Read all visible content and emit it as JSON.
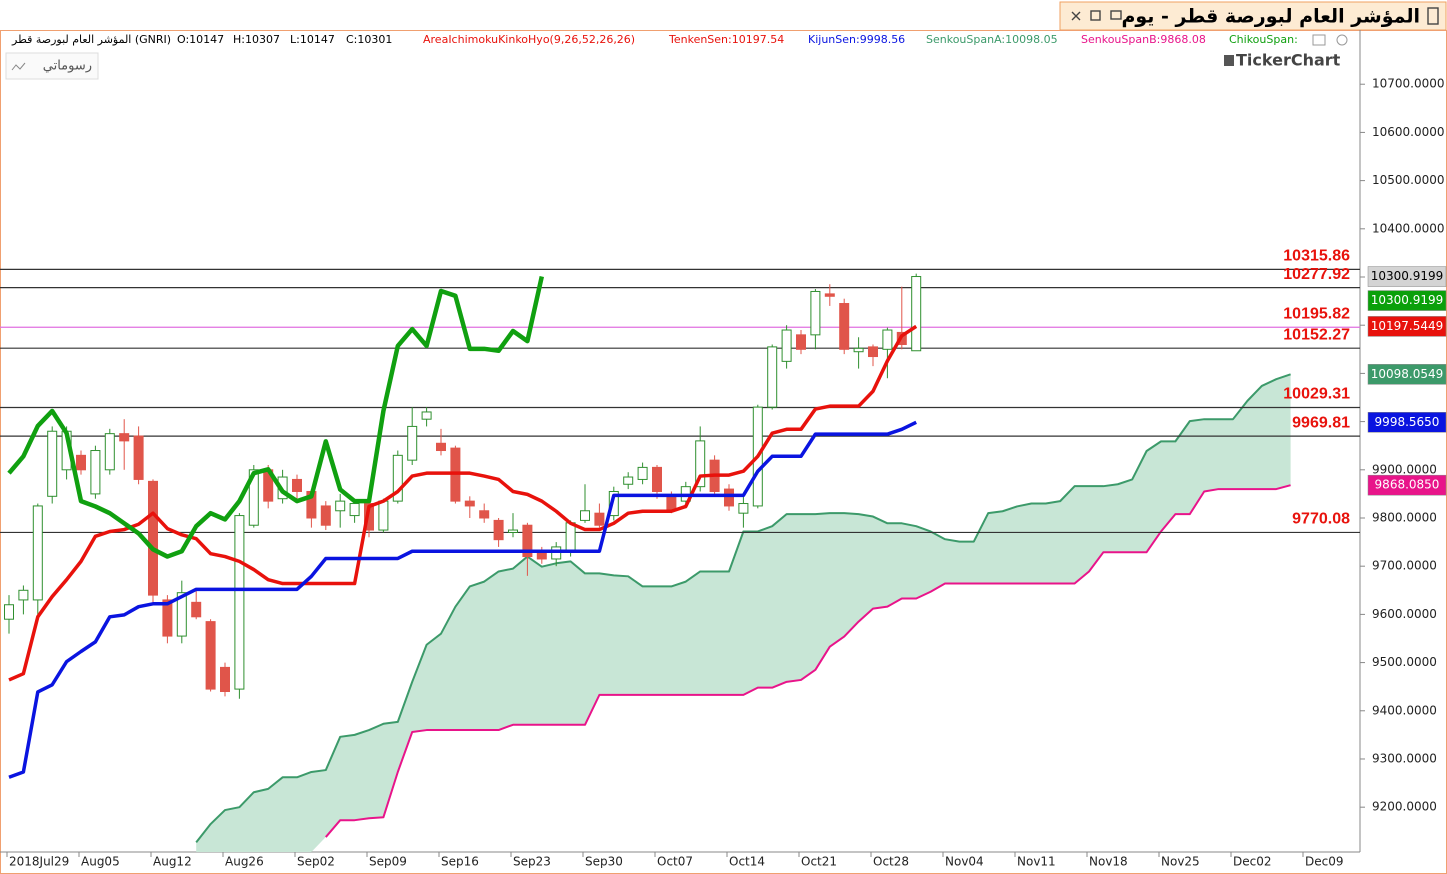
{
  "chart_data": {
    "type": "candlestick",
    "title": "المؤشر العام لبورصة قطر - يوم",
    "button": "رسوماتي",
    "logo": "TickerChart",
    "info": [
      {
        "text": "المؤشر العام لبورصة قطر (GNRI)",
        "color": "#000000"
      },
      {
        "text": "O:10147",
        "color": "#000000"
      },
      {
        "text": "H:10307",
        "color": "#000000"
      },
      {
        "text": "L:10147",
        "color": "#000000"
      },
      {
        "text": "C:10301",
        "color": "#000000"
      },
      {
        "text": "AreaIchimokuKinkoHyo(9,26,52,26,26)",
        "color": "#e8120c"
      },
      {
        "text": "TenkenSen:10197.54",
        "color": "#e8120c"
      },
      {
        "text": "KijunSen:9998.56",
        "color": "#0a14e0"
      },
      {
        "text": "SenkouSpanA:10098.05",
        "color": "#3c9a6a"
      },
      {
        "text": "SenkouSpanB:9868.08",
        "color": "#e8148a"
      },
      {
        "text": "ChikouSpan:",
        "color": "#10a010"
      }
    ],
    "categories": [
      "2018Jul29",
      null,
      null,
      null,
      null,
      "Aug05",
      null,
      null,
      null,
      null,
      "Aug12",
      null,
      null,
      null,
      null,
      "Aug26",
      null,
      null,
      null,
      null,
      "Sep02",
      null,
      null,
      null,
      null,
      "Sep09",
      null,
      null,
      null,
      null,
      "Sep16",
      null,
      null,
      null,
      null,
      "Sep23",
      null,
      null,
      null,
      null,
      "Sep30",
      null,
      null,
      null,
      null,
      "Oct07",
      null,
      null,
      null,
      null,
      "Oct14",
      null,
      null,
      null,
      null,
      "Oct21",
      null,
      null,
      null,
      null,
      "Oct28",
      null,
      null,
      null,
      null,
      "Nov04",
      null,
      null,
      null,
      null,
      "Nov11",
      null,
      null,
      null,
      null,
      "Nov18",
      null,
      null,
      null,
      null,
      "Nov25",
      null,
      null,
      null,
      null,
      "Dec02",
      null,
      null,
      null,
      null,
      "Dec09",
      null,
      null,
      null,
      null
    ],
    "open": [
      9590,
      9630,
      9630,
      9845,
      9900,
      9930,
      9850,
      9900,
      9975,
      9970,
      9876,
      9630,
      9555,
      9625,
      9585,
      9490,
      9445,
      9785,
      9900,
      9840,
      9880,
      9855,
      9825,
      9815,
      9805,
      9830,
      9775,
      9835,
      9920,
      10005,
      9955,
      9945,
      9835,
      9815,
      9795,
      9770,
      9785,
      9730,
      9715,
      9730,
      9795,
      9810,
      9805,
      9870,
      9880,
      9905,
      9845,
      9835,
      9865,
      9920,
      9860,
      9810,
      9825,
      10030,
      10125,
      10180,
      10180,
      10265,
      10245,
      10145,
      10155,
      10150,
      10185,
      10147,
      null,
      null,
      null,
      null,
      null,
      null,
      null,
      null,
      null,
      null,
      null,
      null,
      null,
      null,
      null,
      null,
      null,
      null,
      null,
      null,
      null,
      null,
      null,
      null,
      null,
      null,
      null,
      null,
      null,
      null,
      null
    ],
    "high": [
      9640,
      9660,
      9830,
      9990,
      9990,
      9940,
      9950,
      9985,
      10005,
      9990,
      9880,
      9640,
      9670,
      9650,
      9590,
      9500,
      9810,
      9910,
      9910,
      9900,
      9890,
      9860,
      9835,
      9850,
      9840,
      9835,
      9840,
      9940,
      10030,
      10030,
      9985,
      9950,
      9845,
      9830,
      9800,
      9810,
      9790,
      9740,
      9750,
      9795,
      9870,
      9830,
      9865,
      9895,
      9915,
      9910,
      9855,
      9875,
      9990,
      9930,
      9870,
      9845,
      10035,
      10160,
      10200,
      10190,
      10275,
      10285,
      10255,
      10175,
      10160,
      10195,
      10280,
      10307,
      null,
      null,
      null,
      null,
      null,
      null,
      null,
      null,
      null,
      null,
      null,
      null,
      null,
      null,
      null,
      null,
      null,
      null,
      null,
      null,
      null,
      null,
      null,
      null,
      null,
      null,
      null,
      null,
      null,
      null,
      null
    ],
    "low": [
      9560,
      9600,
      9600,
      9830,
      9880,
      9890,
      9840,
      9890,
      9900,
      9870,
      9620,
      9540,
      9540,
      9590,
      9440,
      9430,
      9425,
      9780,
      9820,
      9830,
      9840,
      9780,
      9775,
      9780,
      9790,
      9760,
      9770,
      9830,
      9910,
      9990,
      9930,
      9830,
      9800,
      9790,
      9740,
      9760,
      9680,
      9705,
      9700,
      9720,
      9790,
      9780,
      9795,
      9860,
      9870,
      9840,
      9810,
      9820,
      9855,
      9850,
      9815,
      9780,
      9820,
      10025,
      10110,
      10140,
      10150,
      10240,
      10140,
      10110,
      10115,
      10090,
      10150,
      10147,
      null,
      null,
      null,
      null,
      null,
      null,
      null,
      null,
      null,
      null,
      null,
      null,
      null,
      null,
      null,
      null,
      null,
      null,
      null,
      null,
      null,
      null,
      null,
      null,
      null,
      null,
      null,
      null,
      null,
      null,
      null
    ],
    "close": [
      9620,
      9650,
      9825,
      9980,
      9980,
      9900,
      9940,
      9975,
      9960,
      9880,
      9640,
      9555,
      9645,
      9595,
      9445,
      9440,
      9805,
      9900,
      9835,
      9885,
      9855,
      9800,
      9785,
      9835,
      9830,
      9775,
      9835,
      9930,
      9990,
      10020,
      9940,
      9835,
      9825,
      9800,
      9755,
      9775,
      9720,
      9715,
      9740,
      9790,
      9815,
      9785,
      9855,
      9885,
      9905,
      9855,
      9815,
      9865,
      9960,
      9855,
      9825,
      9830,
      10030,
      10155,
      10190,
      10150,
      10270,
      10260,
      10150,
      10152,
      10135,
      10190,
      10160,
      10301,
      null,
      null,
      null,
      null,
      null,
      null,
      null,
      null,
      null,
      null,
      null,
      null,
      null,
      null,
      null,
      null,
      null,
      null,
      null,
      null,
      null,
      null,
      null,
      null,
      null,
      null,
      null,
      null,
      null,
      null,
      null
    ],
    "up_color": "#2f8f2f",
    "down_color": "#e0554a",
    "series": [
      {
        "color": "#e8120c",
        "values": [
          9464,
          9477,
          9595,
          9637,
          9672,
          9710,
          9762,
          9772,
          9776,
          9787,
          9810,
          9778,
          9765,
          9757,
          9726,
          9720,
          9710,
          9693,
          9672,
          9664,
          9664,
          9664,
          9664,
          9664,
          9664,
          9824,
          9835,
          9855,
          9887,
          9893,
          9893,
          9893,
          9893,
          9887,
          9880,
          9855,
          9849,
          9835,
          9814,
          9789,
          9776,
          9776,
          9789,
          9810,
          9814,
          9814,
          9814,
          9824,
          9887,
          9889,
          9889,
          9897,
          9928,
          9976,
          9984,
          9984,
          10026,
          10032,
          10032,
          10032,
          10063,
          10126,
          10178,
          10197.54,
          null,
          null,
          null,
          null,
          null,
          null,
          null,
          null,
          null,
          null,
          null,
          null,
          null,
          null,
          null,
          null,
          null,
          null,
          null,
          null,
          null,
          null,
          null,
          null,
          null,
          null,
          null,
          null,
          null,
          null,
          null
        ]
      },
      {
        "color": "#0a14e0",
        "values": [
          9262,
          9273,
          9439,
          9454,
          9502,
          9523,
          9543,
          9595,
          9599,
          9616,
          9622,
          9622,
          9637,
          9652,
          9652,
          9652,
          9652,
          9652,
          9652,
          9652,
          9652,
          9679,
          9716,
          9716,
          9716,
          9716,
          9716,
          9716,
          9731,
          9731,
          9731,
          9731,
          9731,
          9731,
          9731,
          9731,
          9731,
          9731,
          9731,
          9731,
          9731,
          9731,
          9847,
          9847,
          9847,
          9847,
          9847,
          9847,
          9847,
          9847,
          9847,
          9847,
          9897,
          9928,
          9928,
          9928,
          9974,
          9974,
          9974,
          9974,
          9974,
          9974,
          9984,
          9998.56,
          null,
          null,
          null,
          null,
          null,
          null,
          null,
          null,
          null,
          null,
          null,
          null,
          null,
          null,
          null,
          null,
          null,
          null,
          null,
          null,
          null,
          null,
          null,
          null,
          null,
          null,
          null,
          null,
          null,
          null,
          null
        ]
      },
      {
        "color": "#10a010",
        "values": [
          9893,
          9928,
          9991,
          10022,
          9976,
          9835,
          9824,
          9810,
          9789,
          9768,
          9735,
          9720,
          9731,
          9783,
          9810,
          9797,
          9835,
          9893,
          9901,
          9855,
          9835,
          9845,
          9959,
          9859,
          9835,
          9835,
          10022,
          10157,
          10192,
          10157,
          10271,
          10261,
          10151,
          10151,
          10147,
          10188,
          10167,
          10301,
          null,
          null,
          null,
          null,
          null,
          null,
          null,
          null,
          null,
          null,
          null,
          null,
          null,
          null,
          null,
          null,
          null,
          null,
          null,
          null,
          null,
          null,
          null,
          null,
          null,
          null,
          null,
          null,
          null,
          null,
          null,
          null,
          null,
          null,
          null,
          null,
          null,
          null,
          null,
          null,
          null,
          null,
          null,
          null,
          null,
          null,
          null,
          null,
          null,
          null,
          null,
          null,
          null,
          null,
          null,
          null,
          null
        ]
      },
      {
        "color": "#3c9a6a",
        "values": [
          null,
          null,
          null,
          null,
          null,
          null,
          null,
          null,
          null,
          null,
          null,
          null,
          null,
          9127,
          9165,
          9194,
          9200,
          9231,
          9238,
          9262,
          9262,
          9273,
          9277,
          9346,
          9350,
          9360,
          9373,
          9377,
          9460,
          9537,
          9560,
          9616,
          9658,
          9668,
          9689,
          9695,
          9720,
          9699,
          9706,
          9710,
          9685,
          9685,
          9681,
          9679,
          9658,
          9658,
          9658,
          9668,
          9689,
          9689,
          9689,
          9772,
          9772,
          9783,
          9808,
          9808,
          9808,
          9810,
          9810,
          9808,
          9803,
          9789,
          9789,
          9783,
          9772,
          9756,
          9751,
          9751,
          9810,
          9814,
          9824,
          9830,
          9830,
          9835,
          9866,
          9866,
          9866,
          9870,
          9880,
          9939,
          9959,
          9959,
          10001,
          10005,
          10005,
          10005,
          10043,
          10074,
          10088,
          10098.05,
          null,
          null,
          null,
          null,
          null
        ]
      },
      {
        "color": "#e8148a",
        "values": [
          null,
          null,
          null,
          null,
          null,
          null,
          null,
          null,
          null,
          null,
          null,
          null,
          null,
          null,
          null,
          null,
          null,
          null,
          null,
          null,
          null,
          null,
          9138,
          9173,
          9173,
          9177,
          9179,
          9273,
          9356,
          9360,
          9360,
          9360,
          9360,
          9360,
          9360,
          9371,
          9371,
          9371,
          9371,
          9371,
          9371,
          9433,
          9433,
          9433,
          9433,
          9433,
          9433,
          9433,
          9433,
          9433,
          9433,
          9433,
          9448,
          9448,
          9460,
          9464,
          9485,
          9533,
          9554,
          9585,
          9612,
          9616,
          9633,
          9633,
          9647,
          9664,
          9664,
          9664,
          9664,
          9664,
          9664,
          9664,
          9664,
          9664,
          9664,
          9689,
          9729,
          9729,
          9729,
          9729,
          9772,
          9808,
          9808,
          9855,
          9860,
          9860,
          9860,
          9860,
          9860,
          9868.08,
          null,
          null,
          null,
          null,
          null
        ]
      }
    ],
    "cloud_color": "#c8e6d6",
    "levels": [
      10315.86,
      10277.92,
      10195.82,
      10152.27,
      10029.31,
      9969.81,
      9770.08
    ],
    "level_colors": [
      "#333333",
      "#333333",
      "#e070e0",
      "#333333",
      "#333333",
      "#333333",
      "#333333"
    ],
    "price_tags": [
      {
        "value": 10300.9199,
        "color": "#d4d4d4",
        "text_color": "#000000"
      },
      {
        "value": 10300.9199,
        "color": "#0aa00a",
        "text_color": "#ffffff"
      },
      {
        "value": 10197.5449,
        "color": "#e8120c",
        "text_color": "#ffffff"
      },
      {
        "value": 10098.0549,
        "color": "#3c9a6a",
        "text_color": "#ffffff"
      },
      {
        "value": 9998.565,
        "label": "9998.5650",
        "color": "#0a14e0",
        "text_color": "#ffffff"
      },
      {
        "value": 9868.085,
        "label": "9868.0850",
        "color": "#e8148a",
        "text_color": "#ffffff"
      }
    ],
    "ylim": [
      9107,
      10771
    ],
    "yticks": [
      {
        "value": 9200,
        "label": "9200.0000"
      },
      {
        "value": 9300,
        "label": "9300.0000"
      },
      {
        "value": 9400,
        "label": "9400.0000"
      },
      {
        "value": 9500,
        "label": "9500.0000"
      },
      {
        "value": 9600,
        "label": "9600.0000"
      },
      {
        "value": 9700,
        "label": "9700.0000"
      },
      {
        "value": 9800,
        "label": "9800.0000"
      },
      {
        "value": 9900,
        "label": "9900.0000"
      },
      {
        "value": 10000,
        "label": "10000.0000"
      },
      {
        "value": 10100,
        "label": "10100.0000"
      },
      {
        "value": 10200,
        "label": "10200.0000"
      },
      {
        "value": 10300,
        "label": "10300.0000"
      },
      {
        "value": 10400,
        "label": "10400.0000"
      },
      {
        "value": 10500,
        "label": "10500.0000"
      },
      {
        "value": 10600,
        "label": "10600.0000"
      },
      {
        "value": 10700,
        "label": "10700.0000"
      }
    ]
  }
}
